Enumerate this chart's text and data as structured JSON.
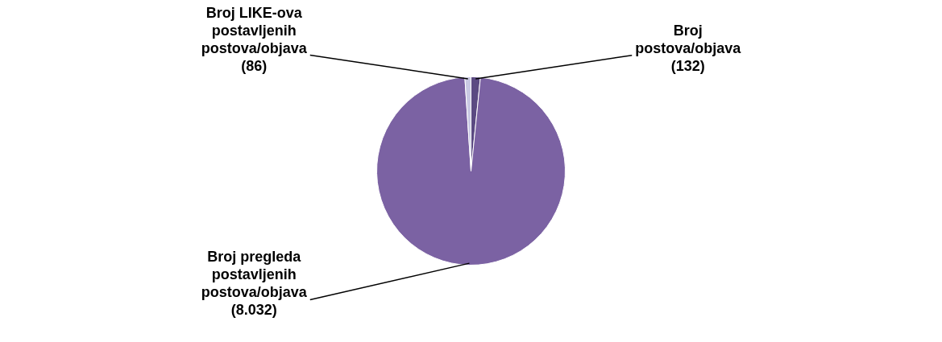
{
  "chart_data": {
    "type": "pie",
    "categories": [
      "Broj postova/objava",
      "Broj pregleda postavljenih postova/objava",
      "Broj LIKE-ova postavljenih postova/objava"
    ],
    "values": [
      132,
      8032,
      86
    ],
    "value_labels": [
      "(132)",
      "(8.032)",
      "(86)"
    ],
    "colors": [
      "#5b4a82",
      "#7b62a3",
      "#c9c9e3"
    ],
    "legend": false
  }
}
